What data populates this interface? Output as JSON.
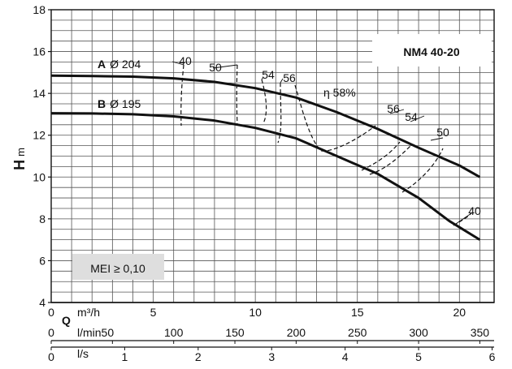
{
  "chart_data": {
    "type": "line",
    "title": "NM4 40-20",
    "ylabel_main": "H",
    "ylabel_unit": "m",
    "ylim": [
      4,
      18
    ],
    "y_ticks": [
      "4",
      "6",
      "8",
      "10",
      "12",
      "14",
      "16",
      "18"
    ],
    "x_m3h": {
      "label": "Q",
      "unit": "m³/h",
      "range": [
        0,
        21.7
      ],
      "ticks": [
        "0",
        "5",
        "10",
        "15",
        "20"
      ]
    },
    "x_lmin": {
      "unit": "l/min",
      "ticks": [
        "0",
        "50",
        "100",
        "150",
        "200",
        "250",
        "300",
        "350"
      ]
    },
    "x_ls": {
      "unit": "l/s",
      "ticks": [
        "0",
        "1",
        "2",
        "3",
        "4",
        "5",
        "6"
      ]
    },
    "series": [
      {
        "name": "A",
        "label_suffix": "Ø 204",
        "x": [
          0,
          2,
          4,
          6,
          8,
          10,
          12,
          14,
          16,
          18,
          20,
          21
        ],
        "y": [
          14.85,
          14.83,
          14.8,
          14.72,
          14.55,
          14.25,
          13.8,
          13.1,
          12.3,
          11.4,
          10.55,
          10.0
        ]
      },
      {
        "name": "B",
        "label_suffix": "Ø 195",
        "x": [
          0,
          2,
          4,
          6,
          8,
          10,
          12,
          14,
          16,
          18,
          19.5,
          21
        ],
        "y": [
          13.05,
          13.04,
          13.0,
          12.9,
          12.7,
          12.35,
          11.85,
          11.0,
          10.15,
          9.0,
          7.9,
          7.0
        ]
      }
    ],
    "efficiency_label": "η 58%",
    "efficiency_labels": [
      "40",
      "50",
      "54",
      "56",
      "56",
      "54",
      "50",
      "40"
    ],
    "annotation": "MEI ≥ 0,10"
  }
}
